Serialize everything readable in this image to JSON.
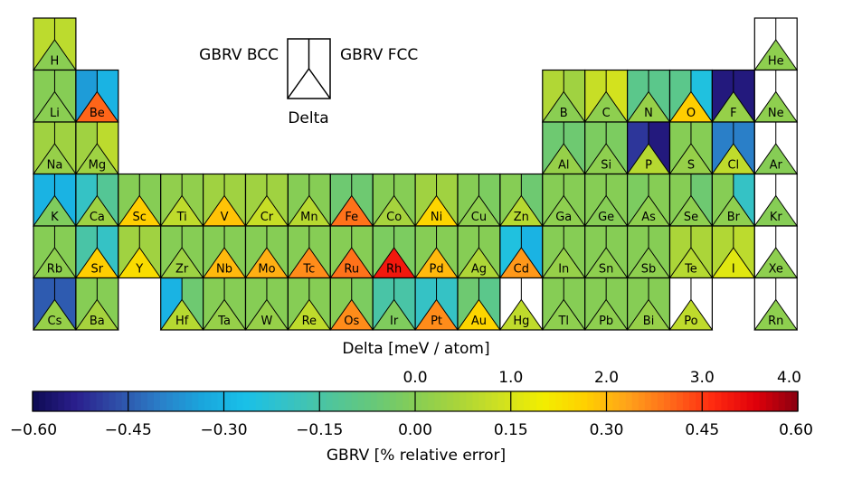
{
  "chart_data": {
    "type": "heatmap",
    "legend": {
      "left_label": "GBRV BCC",
      "right_label": "GBRV FCC",
      "bottom_label": "Delta"
    },
    "colorbar": {
      "delta_label": "Delta  [meV / atom]",
      "delta_ticks": [
        "0.0",
        "1.0",
        "2.0",
        "3.0",
        "4.0"
      ],
      "delta_range": [
        -4.0,
        4.0
      ],
      "error_label": "GBRV   [% relative error]",
      "error_ticks": [
        "−0.60",
        "−0.45",
        "−0.30",
        "−0.15",
        "0.00",
        "0.15",
        "0.30",
        "0.45",
        "0.60"
      ],
      "error_range": [
        -0.6,
        0.6
      ]
    },
    "colormap": [
      "#0d0b52",
      "#2a1e8c",
      "#2f4fa8",
      "#2a7fc8",
      "#1aa6dd",
      "#19c0e8",
      "#35c2c5",
      "#4fc59c",
      "#66c87a",
      "#86cd55",
      "#a9d43a",
      "#cfe121",
      "#f2ee00",
      "#ffd000",
      "#ffa21a",
      "#ff6a1a",
      "#ff2a10",
      "#e0000a",
      "#8a0010"
    ],
    "elements": [
      {
        "symbol": "H",
        "row": 1,
        "group": 1,
        "bcc": 0.1,
        "fcc": 0.1,
        "delta": 0.05
      },
      {
        "symbol": "He",
        "row": 1,
        "group": 18,
        "bcc": null,
        "fcc": null,
        "delta": 0.1
      },
      {
        "symbol": "Li",
        "row": 2,
        "group": 1,
        "bcc": 0.0,
        "fcc": 0.0,
        "delta": 0.05
      },
      {
        "symbol": "Be",
        "row": 2,
        "group": 2,
        "bcc": -0.35,
        "fcc": -0.3,
        "delta": 2.7
      },
      {
        "symbol": "B",
        "row": 2,
        "group": 13,
        "bcc": 0.08,
        "fcc": 0.05,
        "delta": 0.05
      },
      {
        "symbol": "C",
        "row": 2,
        "group": 14,
        "bcc": 0.12,
        "fcc": 0.14,
        "delta": 0.1
      },
      {
        "symbol": "N",
        "row": 2,
        "group": 15,
        "bcc": -0.1,
        "fcc": -0.1,
        "delta": 0.2
      },
      {
        "symbol": "O",
        "row": 2,
        "group": 16,
        "bcc": -0.1,
        "fcc": -0.25,
        "delta": 1.8
      },
      {
        "symbol": "F",
        "row": 2,
        "group": 17,
        "bcc": -0.55,
        "fcc": -0.55,
        "delta": 0.2
      },
      {
        "symbol": "Ne",
        "row": 2,
        "group": 18,
        "bcc": null,
        "fcc": null,
        "delta": 0.1
      },
      {
        "symbol": "Na",
        "row": 3,
        "group": 1,
        "bcc": 0.05,
        "fcc": 0.05,
        "delta": 0.2
      },
      {
        "symbol": "Mg",
        "row": 3,
        "group": 2,
        "bcc": 0.05,
        "fcc": 0.1,
        "delta": 0.3
      },
      {
        "symbol": "Al",
        "row": 3,
        "group": 13,
        "bcc": -0.05,
        "fcc": -0.05,
        "delta": 0.2
      },
      {
        "symbol": "Si",
        "row": 3,
        "group": 14,
        "bcc": -0.02,
        "fcc": -0.02,
        "delta": 0.1
      },
      {
        "symbol": "P",
        "row": 3,
        "group": 15,
        "bcc": -0.5,
        "fcc": -0.55,
        "delta": 0.6
      },
      {
        "symbol": "S",
        "row": 3,
        "group": 16,
        "bcc": 0.0,
        "fcc": 0.0,
        "delta": 0.2
      },
      {
        "symbol": "Cl",
        "row": 3,
        "group": 17,
        "bcc": -0.4,
        "fcc": -0.4,
        "delta": 0.7
      },
      {
        "symbol": "Ar",
        "row": 3,
        "group": 18,
        "bcc": null,
        "fcc": null,
        "delta": 0.0
      },
      {
        "symbol": "K",
        "row": 4,
        "group": 1,
        "bcc": -0.3,
        "fcc": -0.3,
        "delta": -0.1
      },
      {
        "symbol": "Ca",
        "row": 4,
        "group": 2,
        "bcc": -0.2,
        "fcc": -0.12,
        "delta": 0.3
      },
      {
        "symbol": "Sc",
        "row": 4,
        "group": 3,
        "bcc": 0.0,
        "fcc": 0.0,
        "delta": 1.8
      },
      {
        "symbol": "Ti",
        "row": 4,
        "group": 4,
        "bcc": 0.02,
        "fcc": 0.02,
        "delta": 0.7
      },
      {
        "symbol": "V",
        "row": 4,
        "group": 5,
        "bcc": 0.05,
        "fcc": 0.05,
        "delta": 1.9
      },
      {
        "symbol": "Cr",
        "row": 4,
        "group": 6,
        "bcc": 0.05,
        "fcc": 0.05,
        "delta": 0.8
      },
      {
        "symbol": "Mn",
        "row": 4,
        "group": 7,
        "bcc": 0.0,
        "fcc": 0.0,
        "delta": 0.6
      },
      {
        "symbol": "Fe",
        "row": 4,
        "group": 8,
        "bcc": -0.05,
        "fcc": -0.05,
        "delta": 2.6
      },
      {
        "symbol": "Co",
        "row": 4,
        "group": 9,
        "bcc": 0.0,
        "fcc": 0.0,
        "delta": 0.4
      },
      {
        "symbol": "Ni",
        "row": 4,
        "group": 10,
        "bcc": 0.05,
        "fcc": 0.05,
        "delta": 1.7
      },
      {
        "symbol": "Cu",
        "row": 4,
        "group": 11,
        "bcc": 0.0,
        "fcc": -0.02,
        "delta": 0.1
      },
      {
        "symbol": "Zn",
        "row": 4,
        "group": 12,
        "bcc": 0.0,
        "fcc": -0.05,
        "delta": 0.6
      },
      {
        "symbol": "Ga",
        "row": 4,
        "group": 13,
        "bcc": 0.0,
        "fcc": 0.0,
        "delta": 0.1
      },
      {
        "symbol": "Ge",
        "row": 4,
        "group": 14,
        "bcc": 0.0,
        "fcc": 0.0,
        "delta": 0.0
      },
      {
        "symbol": "As",
        "row": 4,
        "group": 15,
        "bcc": -0.02,
        "fcc": 0.0,
        "delta": 0.1
      },
      {
        "symbol": "Se",
        "row": 4,
        "group": 16,
        "bcc": 0.0,
        "fcc": -0.05,
        "delta": 0.1
      },
      {
        "symbol": "Br",
        "row": 4,
        "group": 17,
        "bcc": 0.0,
        "fcc": -0.2,
        "delta": 0.1
      },
      {
        "symbol": "Kr",
        "row": 4,
        "group": 18,
        "bcc": null,
        "fcc": null,
        "delta": 0.0
      },
      {
        "symbol": "Rb",
        "row": 5,
        "group": 1,
        "bcc": 0.0,
        "fcc": 0.0,
        "delta": 0.1
      },
      {
        "symbol": "Sr",
        "row": 5,
        "group": 2,
        "bcc": -0.15,
        "fcc": -0.2,
        "delta": 1.8
      },
      {
        "symbol": "Y",
        "row": 5,
        "group": 3,
        "bcc": 0.05,
        "fcc": 0.05,
        "delta": 1.6
      },
      {
        "symbol": "Zr",
        "row": 5,
        "group": 4,
        "bcc": 0.0,
        "fcc": 0.0,
        "delta": 0.3
      },
      {
        "symbol": "Nb",
        "row": 5,
        "group": 5,
        "bcc": 0.0,
        "fcc": 0.0,
        "delta": 2.0
      },
      {
        "symbol": "Mo",
        "row": 5,
        "group": 6,
        "bcc": 0.0,
        "fcc": 0.0,
        "delta": 2.1
      },
      {
        "symbol": "Tc",
        "row": 5,
        "group": 7,
        "bcc": 0.0,
        "fcc": 0.0,
        "delta": 2.4
      },
      {
        "symbol": "Ru",
        "row": 5,
        "group": 8,
        "bcc": 0.0,
        "fcc": 0.0,
        "delta": 2.6
      },
      {
        "symbol": "Rh",
        "row": 5,
        "group": 9,
        "bcc": -0.02,
        "fcc": -0.02,
        "delta": 3.3
      },
      {
        "symbol": "Pd",
        "row": 5,
        "group": 10,
        "bcc": 0.0,
        "fcc": 0.0,
        "delta": 2.0
      },
      {
        "symbol": "Ag",
        "row": 5,
        "group": 11,
        "bcc": 0.0,
        "fcc": 0.0,
        "delta": 0.5
      },
      {
        "symbol": "Cd",
        "row": 5,
        "group": 12,
        "bcc": -0.25,
        "fcc": -0.3,
        "delta": 2.3
      },
      {
        "symbol": "In",
        "row": 5,
        "group": 13,
        "bcc": 0.0,
        "fcc": 0.0,
        "delta": 0.2
      },
      {
        "symbol": "Sn",
        "row": 5,
        "group": 14,
        "bcc": 0.0,
        "fcc": 0.0,
        "delta": 0.1
      },
      {
        "symbol": "Sb",
        "row": 5,
        "group": 15,
        "bcc": 0.0,
        "fcc": 0.0,
        "delta": 0.1
      },
      {
        "symbol": "Te",
        "row": 5,
        "group": 16,
        "bcc": 0.07,
        "fcc": 0.07,
        "delta": 0.6
      },
      {
        "symbol": "I",
        "row": 5,
        "group": 17,
        "bcc": 0.08,
        "fcc": 0.1,
        "delta": 1.1
      },
      {
        "symbol": "Xe",
        "row": 5,
        "group": 18,
        "bcc": null,
        "fcc": null,
        "delta": 0.1
      },
      {
        "symbol": "Cs",
        "row": 6,
        "group": 1,
        "bcc": -0.45,
        "fcc": -0.45,
        "delta": 0.2
      },
      {
        "symbol": "Ba",
        "row": 6,
        "group": 2,
        "bcc": 0.0,
        "fcc": 0.0,
        "delta": 0.4
      },
      {
        "symbol": "Hf",
        "row": 6,
        "group": 4,
        "bcc": -0.3,
        "fcc": -0.05,
        "delta": 0.6
      },
      {
        "symbol": "Ta",
        "row": 6,
        "group": 5,
        "bcc": 0.0,
        "fcc": 0.0,
        "delta": 0.2
      },
      {
        "symbol": "W",
        "row": 6,
        "group": 6,
        "bcc": 0.0,
        "fcc": 0.0,
        "delta": 0.2
      },
      {
        "symbol": "Re",
        "row": 6,
        "group": 7,
        "bcc": 0.0,
        "fcc": 0.0,
        "delta": 0.7
      },
      {
        "symbol": "Os",
        "row": 6,
        "group": 8,
        "bcc": 0.0,
        "fcc": -0.02,
        "delta": 2.4
      },
      {
        "symbol": "Ir",
        "row": 6,
        "group": 9,
        "bcc": -0.15,
        "fcc": -0.15,
        "delta": -0.1
      },
      {
        "symbol": "Pt",
        "row": 6,
        "group": 10,
        "bcc": -0.2,
        "fcc": -0.2,
        "delta": 2.4
      },
      {
        "symbol": "Au",
        "row": 6,
        "group": 11,
        "bcc": -0.05,
        "fcc": -0.1,
        "delta": 1.7
      },
      {
        "symbol": "Hg",
        "row": 6,
        "group": 12,
        "bcc": null,
        "fcc": null,
        "delta": 0.7
      },
      {
        "symbol": "Tl",
        "row": 6,
        "group": 13,
        "bcc": 0.0,
        "fcc": 0.0,
        "delta": 0.1
      },
      {
        "symbol": "Pb",
        "row": 6,
        "group": 14,
        "bcc": 0.0,
        "fcc": 0.0,
        "delta": 0.1
      },
      {
        "symbol": "Bi",
        "row": 6,
        "group": 15,
        "bcc": 0.0,
        "fcc": 0.0,
        "delta": 0.2
      },
      {
        "symbol": "Po",
        "row": 6,
        "group": 16,
        "bcc": null,
        "fcc": null,
        "delta": 0.7
      },
      {
        "symbol": "Rn",
        "row": 6,
        "group": 18,
        "bcc": null,
        "fcc": null,
        "delta": 0.1
      }
    ]
  }
}
